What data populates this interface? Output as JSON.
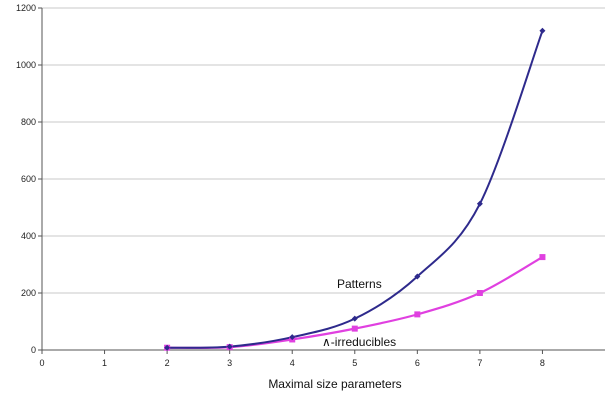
{
  "chart_data": {
    "type": "line",
    "title": "",
    "xlabel": "Maximal size parameters",
    "ylabel": "",
    "x": [
      2,
      3,
      4,
      5,
      6,
      7,
      8
    ],
    "xlim": [
      0,
      9
    ],
    "ylim": [
      0,
      1200
    ],
    "xticks": [
      "0",
      "1",
      "2",
      "3",
      "4",
      "5",
      "6",
      "7",
      "8"
    ],
    "yticks": [
      "0",
      "200",
      "400",
      "600",
      "800",
      "1000",
      "1200"
    ],
    "grid": "horizontal",
    "series": [
      {
        "name": "Patterns",
        "values": [
          8,
          12,
          45,
          110,
          258,
          513,
          1120
        ],
        "color": "#2e2a8c",
        "marker": "diamond"
      },
      {
        "name": "∧-irreducibles",
        "values": [
          8,
          10,
          37,
          75,
          125,
          200,
          326
        ],
        "color": "#e040e0",
        "marker": "square"
      }
    ],
    "legend": "inline labels near curves"
  }
}
